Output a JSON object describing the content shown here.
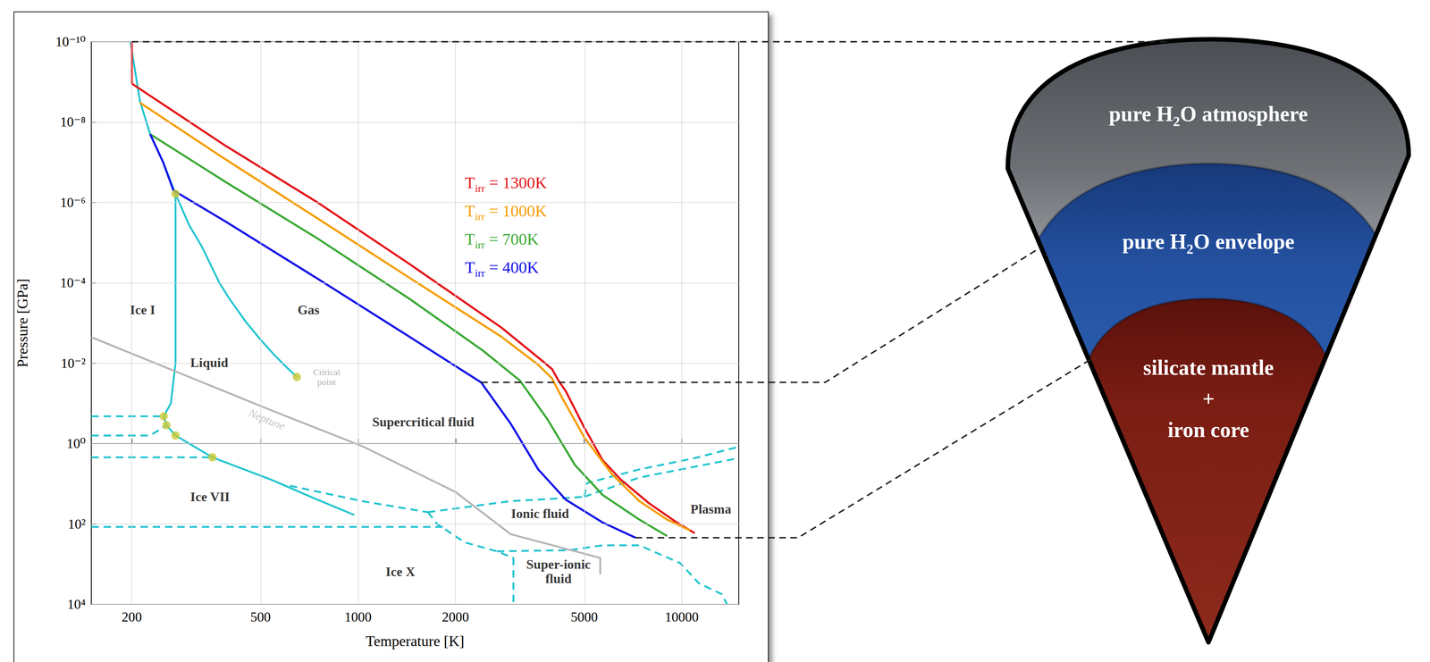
{
  "chart_data": {
    "type": "line",
    "xlabel": "Temperature [K]",
    "ylabel": "Pressure [GPa]",
    "log": true,
    "grid": true,
    "legend": "upper right",
    "xlim": [
      150,
      15000
    ],
    "xticks": [
      200,
      500,
      1000,
      2000,
      5000,
      10000
    ],
    "ylim": [
      10000,
      1e-10
    ],
    "yticks": [
      {
        "value": 1e-10,
        "label": "10⁻¹⁰"
      },
      {
        "value": 1e-08,
        "label": "10⁻⁸"
      },
      {
        "value": 1e-06,
        "label": "10⁻⁶"
      },
      {
        "value": 0.0001,
        "label": "10⁻⁴"
      },
      {
        "value": 0.01,
        "label": "10⁻²"
      },
      {
        "value": 1,
        "label": "10⁰"
      },
      {
        "value": 100,
        "label": "10²"
      },
      {
        "value": 10000,
        "label": "10⁴"
      }
    ],
    "series": [
      {
        "name": "Tirr = 1300K",
        "type": "line",
        "color": "#e3161b",
        "line_style": "solid",
        "x": [
          200,
          200,
          390,
          750,
          1442,
          2774,
          3724,
          3975,
          4160,
          4385,
          5000,
          5697,
          6494,
          7900,
          9617,
          10965
        ],
        "values": [
          1e-10,
          1.1e-09,
          3.9e-08,
          1e-06,
          3.4e-05,
          0.0013,
          0.009,
          0.014,
          0.027,
          0.05,
          0.4,
          2.6,
          8,
          30,
          90,
          170
        ]
      },
      {
        "name": "Tirr = 1000K",
        "type": "line",
        "color": "#f59d00",
        "line_style": "solid",
        "x": [
          212,
          390,
          750,
          1442,
          2774,
          3604,
          3975,
          4246,
          5000,
          6081,
          7396,
          9012,
          10608
        ],
        "values": [
          3.3e-09,
          8.5e-08,
          2.5e-06,
          7.5e-05,
          0.0022,
          0.011,
          0.024,
          0.067,
          0.7,
          5.7,
          27,
          78,
          145
        ]
      },
      {
        "name": "Tirr = 700K",
        "type": "line",
        "color": "#3aa935",
        "line_style": "solid",
        "x": [
          228,
          390,
          750,
          1442,
          2434,
          3162,
          3849,
          4677,
          5697,
          7396,
          9012
        ],
        "values": [
          2e-08,
          3.1e-07,
          7.9e-06,
          0.00025,
          0.0049,
          0.027,
          0.25,
          3.4,
          19,
          78,
          200
        ]
      },
      {
        "name": "Tirr = 400K",
        "type": "line",
        "color": "#1414e6",
        "line_style": "solid",
        "x": [
          228,
          250,
          269,
          390,
          750,
          1442,
          2400,
          2962,
          3604,
          4385,
          5697,
          7200
        ],
        "values": [
          2e-08,
          1e-07,
          5e-07,
          3e-06,
          7.9e-05,
          0.0022,
          0.03,
          0.32,
          4.4,
          25,
          92,
          220
        ]
      },
      {
        "type": "line",
        "color": "#22c4cf",
        "line_style": "solid",
        "x": [
          198,
          212,
          228,
          250,
          273
        ],
        "values": [
          1e-10,
          3e-09,
          2e-08,
          1e-07,
          6.1e-07
        ]
      },
      {
        "type": "line",
        "color": "#22c4cf",
        "line_style": "solid",
        "x": [
          273,
          300,
          330,
          373,
          400,
          450,
          500,
          550,
          600,
          647
        ],
        "values": [
          6.1e-07,
          3.5e-06,
          1.3e-05,
          0.0001,
          0.000245,
          0.00093,
          0.0026,
          0.0061,
          0.0124,
          0.022
        ]
      },
      {
        "type": "line",
        "color": "#22c4cf",
        "line_style": "solid",
        "x": [
          273,
          273,
          264,
          251,
          256,
          273,
          355,
          541,
          750,
          974
        ],
        "values": [
          6.1e-07,
          0.01,
          0.1,
          0.21,
          0.35,
          0.63,
          2.2,
          8,
          25,
          60
        ]
      },
      {
        "type": "line",
        "color": "#22c4cf",
        "line_style": "dashed",
        "x": [
          150,
          251
        ],
        "values": [
          0.21,
          0.21
        ]
      },
      {
        "type": "line",
        "color": "#22c4cf",
        "line_style": "dashed",
        "x": [
          150,
          228,
          256
        ],
        "values": [
          0.63,
          0.63,
          0.35
        ]
      },
      {
        "type": "line",
        "color": "#22c4cf",
        "line_style": "dashed",
        "x": [
          150,
          355
        ],
        "values": [
          2.2,
          2.2
        ]
      },
      {
        "type": "line",
        "color": "#22c4cf",
        "line_style": "dashed",
        "x": [
          150,
          1870
        ],
        "values": [
          118,
          118
        ]
      },
      {
        "type": "line",
        "color": "#22c4cf",
        "line_style": "dashed",
        "x": [
          616,
          1040,
          1644
        ],
        "values": [
          11.2,
          27.5,
          51
        ]
      },
      {
        "type": "line",
        "color": "#22c4cf",
        "line_style": "dashed",
        "x": [
          1644,
          2962,
          4111,
          5000
        ],
        "values": [
          51,
          27,
          23.4,
          21
        ]
      },
      {
        "type": "line",
        "color": "#22c4cf",
        "line_style": "dashed",
        "x": [
          5000,
          5096,
          7396,
          10965,
          15000
        ],
        "values": [
          21,
          9.6,
          4.4,
          2.3,
          1.2
        ]
      },
      {
        "type": "line",
        "color": "#22c4cf",
        "line_style": "dashed",
        "x": [
          5000,
          7396,
          15000
        ],
        "values": [
          21,
          7,
          2.3
        ]
      },
      {
        "type": "line",
        "color": "#22c4cf",
        "line_style": "dashed",
        "x": [
          1644,
          1755,
          2135,
          2685,
          3020
        ],
        "values": [
          51,
          100,
          288,
          480,
          700
        ]
      },
      {
        "type": "line",
        "color": "#22c4cf",
        "line_style": "dashed",
        "x": [
          3020,
          3020
        ],
        "values": [
          700,
          10000
        ]
      },
      {
        "type": "line",
        "color": "#22c4cf",
        "line_style": "dashed",
        "x": [
          2685,
          4500,
          5700,
          7400,
          9900,
          11300,
          13300,
          13800
        ],
        "values": [
          480,
          450,
          340,
          340,
          950,
          3000,
          5600,
          10000
        ]
      },
      {
        "type": "line",
        "color": "#b4b4b4",
        "line_style": "solid",
        "x": [
          150,
          541,
          1040,
          2000,
          2962,
          5600,
          5600
        ],
        "values": [
          0.00225,
          0.15,
          1.2,
          16,
          180,
          700,
          1800
        ]
      },
      {
        "type": "scatter",
        "color": "#c8c832",
        "marker": "circle",
        "x": [
          273,
          647,
          251,
          256,
          273,
          355
        ],
        "values": [
          6.1e-07,
          0.022,
          0.21,
          0.35,
          0.63,
          2.2
        ]
      }
    ],
    "annotations": [
      {
        "text": "Ice I",
        "x": 216,
        "y": 0.00047
      },
      {
        "text": "Gas",
        "x": 703,
        "y": 0.00047
      },
      {
        "text": "Liquid",
        "x": 347,
        "y": 0.0097
      },
      {
        "text": [
          "Critical",
          "point"
        ],
        "x": 800,
        "y": 0.022,
        "color": "#999999"
      },
      {
        "text": "Supercritical fluid",
        "x": 1590,
        "y": 0.29
      },
      {
        "text": "Neptune",
        "x": 523,
        "y": 0.25,
        "color": "#b4b4b4"
      },
      {
        "text": "Ice VII",
        "x": 349,
        "y": 21
      },
      {
        "text": "Ionic fluid",
        "x": 3650,
        "y": 55
      },
      {
        "text": "Plasma",
        "x": 12300,
        "y": 42
      },
      {
        "text": "Ice X",
        "x": 1352,
        "y": 1520
      },
      {
        "text": [
          "Super-ionic",
          "fluid"
        ],
        "x": 4160,
        "y": 1500
      }
    ]
  },
  "diagram": {
    "layers": [
      {
        "label": "pure H2O atmosphere",
        "boundary_T": 200,
        "boundary_P": 1e-10
      },
      {
        "label": "pure H2O envelope",
        "boundary_T": 2400,
        "boundary_P": 0.03
      },
      {
        "label": [
          "silicate mantle",
          "+",
          "iron core"
        ],
        "boundary_T": 7200,
        "boundary_P": 220
      }
    ]
  }
}
